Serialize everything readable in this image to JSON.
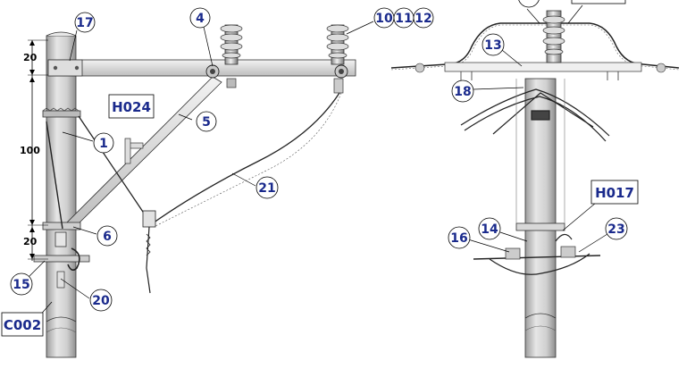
{
  "callouts": {
    "c1": "1",
    "c4": "4",
    "c5": "5",
    "c6": "6",
    "c13": "13",
    "c14": "14",
    "c15": "15",
    "c16": "16",
    "c17": "17",
    "c18": "18",
    "c20": "20",
    "c21": "21",
    "c23": "23",
    "c10": "10",
    "c11": "11",
    "c12": "12"
  },
  "codes": {
    "h024": "H024",
    "h017": "H017",
    "c002": "C002"
  },
  "dimensions": {
    "top": "20",
    "middle": "100",
    "bottom": "20"
  },
  "colors": {
    "callout_text": "#1a2a8c",
    "pole_fill": "#d6d6d6",
    "line": "#000000"
  }
}
